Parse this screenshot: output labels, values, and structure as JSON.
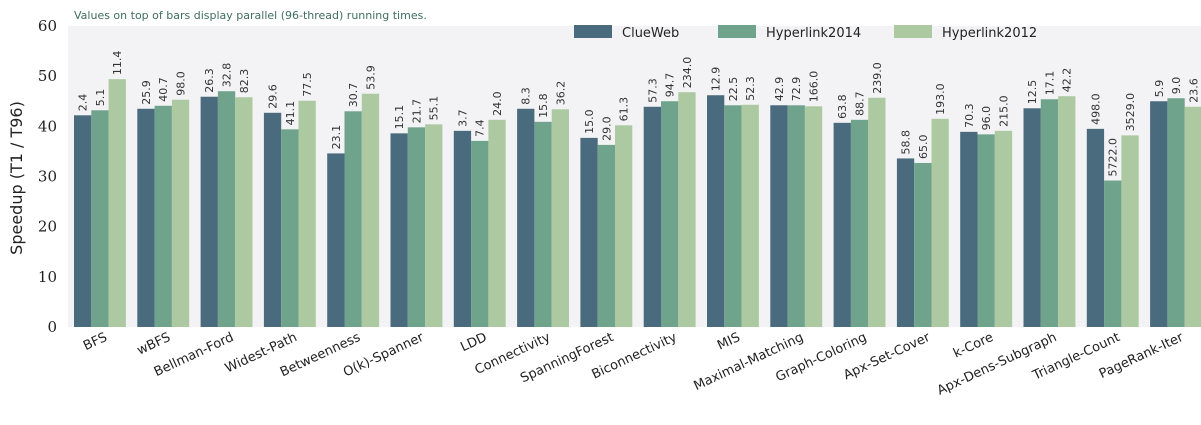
{
  "chart_data": {
    "type": "bar",
    "title": "",
    "annotation": "Values on top of bars display parallel (96-thread) running times.",
    "ylabel": "Speedup (T1 / T96)",
    "xlabel": "",
    "ylim": [
      0,
      60
    ],
    "yticks": [
      0,
      10,
      20,
      30,
      40,
      50,
      60
    ],
    "grid": false,
    "legend_position": "top-right",
    "categories": [
      "BFS",
      "wBFS",
      "Bellman-Ford",
      "Widest-Path",
      "Betweenness",
      "O(k)-Spanner",
      "LDD",
      "Connectivity",
      "SpanningForest",
      "Biconnectivity",
      "MIS",
      "Maximal-Matching",
      "Graph-Coloring",
      "Apx-Set-Cover",
      "k-Core",
      "Apx-Dens-Subgraph",
      "Triangle-Count",
      "PageRank-Iter"
    ],
    "series": [
      {
        "name": "ClueWeb",
        "color": "#4a6b7d",
        "values": [
          42.2,
          43.5,
          45.9,
          42.7,
          34.6,
          38.6,
          39.1,
          43.5,
          37.7,
          43.9,
          46.2,
          44.2,
          40.7,
          33.6,
          38.9,
          43.6,
          39.5,
          45.0
        ],
        "labels": [
          "2.4",
          "25.9",
          "26.3",
          "29.6",
          "23.1",
          "15.1",
          "3.7",
          "8.3",
          "15.0",
          "57.3",
          "12.9",
          "42.9",
          "63.8",
          "58.8",
          "70.3",
          "12.5",
          "498.0",
          "5.9"
        ]
      },
      {
        "name": "Hyperlink2014",
        "color": "#6fa38c",
        "values": [
          43.2,
          44.1,
          47.0,
          39.4,
          43.0,
          39.8,
          37.1,
          40.9,
          36.3,
          45.0,
          44.2,
          44.2,
          41.3,
          32.7,
          38.4,
          45.4,
          29.2,
          45.6
        ],
        "labels": [
          "5.1",
          "40.7",
          "32.8",
          "41.1",
          "30.7",
          "21.7",
          "7.4",
          "15.8",
          "29.0",
          "94.7",
          "22.5",
          "72.9",
          "88.7",
          "65.0",
          "96.0",
          "17.1",
          "5722.0",
          "9.0"
        ]
      },
      {
        "name": "Hyperlink2012",
        "color": "#adc9a2",
        "values": [
          49.4,
          45.3,
          45.8,
          45.1,
          46.5,
          40.4,
          41.3,
          43.4,
          40.2,
          46.8,
          44.3,
          44.0,
          45.7,
          41.5,
          39.1,
          46.0,
          38.2,
          43.9
        ],
        "labels": [
          "11.4",
          "98.0",
          "82.3",
          "77.5",
          "53.9",
          "55.1",
          "24.0",
          "36.2",
          "61.3",
          "234.0",
          "52.3",
          "166.0",
          "239.0",
          "193.0",
          "215.0",
          "42.2",
          "3529.0",
          "23.6"
        ]
      }
    ]
  }
}
